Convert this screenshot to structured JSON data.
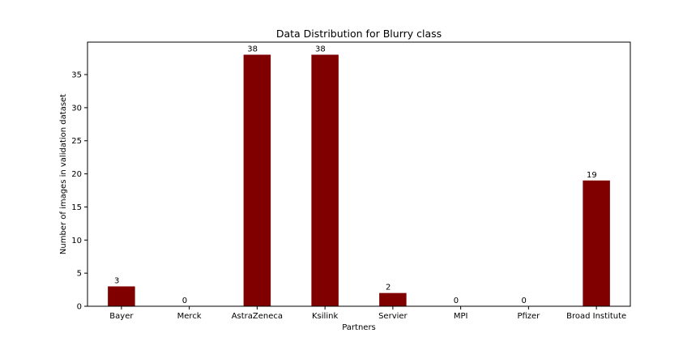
{
  "chart_data": {
    "type": "bar",
    "title": "Data Distribution for Blurry class",
    "xlabel": "Partners",
    "ylabel": "Number of images in validation dataset",
    "categories": [
      "Bayer",
      "Merck",
      "AstraZeneca",
      "Ksilink",
      "Servier",
      "MPI",
      "Pfizer",
      "Broad Institute"
    ],
    "values": [
      3,
      0,
      38,
      38,
      2,
      0,
      0,
      19
    ],
    "ylim": [
      0,
      39.9
    ],
    "yticks": [
      0,
      5,
      10,
      15,
      20,
      25,
      30,
      35
    ],
    "bar_color": "#800000",
    "grid": false,
    "legend": false
  }
}
